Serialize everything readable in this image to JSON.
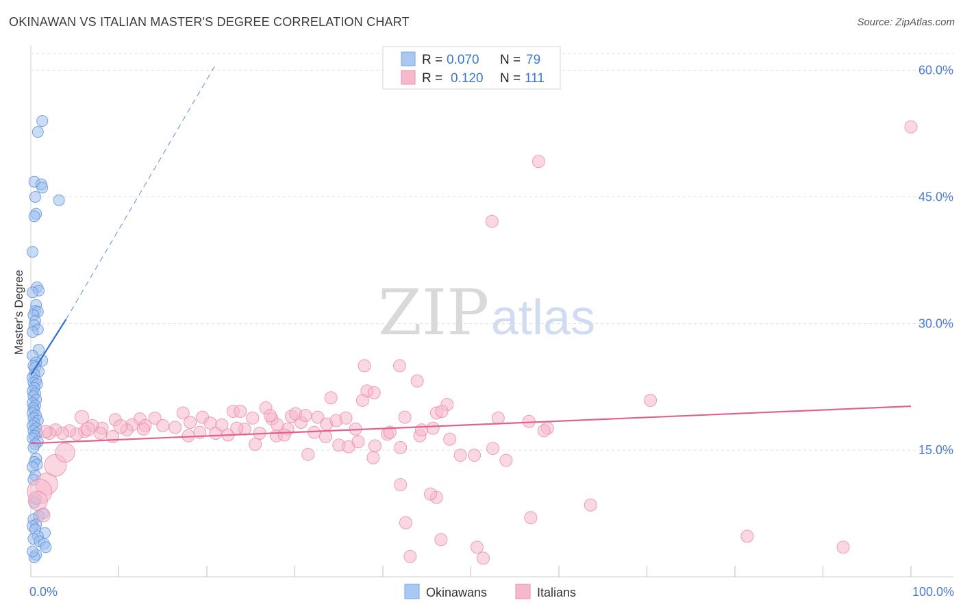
{
  "chart_data": {
    "type": "scatter",
    "title": "OKINAWAN VS ITALIAN MASTER'S DEGREE CORRELATION CHART",
    "source": "Source: ZipAtlas.com",
    "xlabel": "",
    "ylabel": "Master's Degree",
    "xlim": [
      0,
      100
    ],
    "ylim": [
      0,
      62
    ],
    "x_tick_labels": [
      {
        "value": 0,
        "label": "0.0%"
      },
      {
        "value": 100,
        "label": "100.0%"
      }
    ],
    "y_tick_labels": [
      {
        "value": 15,
        "label": "15.0%"
      },
      {
        "value": 30,
        "label": "30.0%"
      },
      {
        "value": 45,
        "label": "45.0%"
      },
      {
        "value": 60,
        "label": "60.0%"
      }
    ],
    "watermark": {
      "part1": "ZIP",
      "part2": "atlas"
    },
    "legend": {
      "rows": [
        {
          "r_label": "R =",
          "r_value": "0.070",
          "n_label": "N =",
          "n_value": "79",
          "color": "#a9c8f2"
        },
        {
          "r_label": "R =",
          "r_value": "0.120",
          "n_label": "N =",
          "n_value": "111",
          "color": "#f6b8cb"
        }
      ]
    },
    "series": [
      {
        "name": "Okinawans",
        "color": "#9ec0ee",
        "edge_color": "#5b8fd8",
        "trend_color": "#2f6fd1",
        "trend_solid": [
          [
            0.0,
            23.9
          ],
          [
            4.0,
            30.5
          ]
        ],
        "trend_dashed": [
          [
            4.0,
            30.5
          ],
          [
            20.9,
            60.5
          ]
        ],
        "points": [
          [
            1.3,
            54.0,
            8
          ],
          [
            0.8,
            52.7,
            8
          ],
          [
            0.4,
            46.8,
            8
          ],
          [
            1.2,
            46.5,
            8
          ],
          [
            1.3,
            46.1,
            8
          ],
          [
            3.2,
            44.6,
            8
          ],
          [
            0.5,
            45.0,
            8
          ],
          [
            0.6,
            43.0,
            8
          ],
          [
            0.4,
            42.7,
            8
          ],
          [
            0.2,
            38.5,
            8
          ],
          [
            0.7,
            34.3,
            8
          ],
          [
            0.9,
            33.9,
            8
          ],
          [
            0.2,
            33.7,
            8
          ],
          [
            0.6,
            32.2,
            8
          ],
          [
            0.5,
            31.5,
            8
          ],
          [
            0.8,
            31.4,
            8
          ],
          [
            0.3,
            31.0,
            8
          ],
          [
            0.5,
            30.3,
            8
          ],
          [
            0.4,
            29.8,
            8
          ],
          [
            0.8,
            29.3,
            8
          ],
          [
            0.2,
            29.0,
            8
          ],
          [
            0.9,
            26.9,
            8
          ],
          [
            0.2,
            26.2,
            8
          ],
          [
            1.3,
            25.6,
            8
          ],
          [
            0.6,
            25.4,
            8
          ],
          [
            0.3,
            25.0,
            8
          ],
          [
            0.5,
            24.8,
            8
          ],
          [
            0.9,
            24.3,
            8
          ],
          [
            0.4,
            24.0,
            8
          ],
          [
            0.2,
            23.6,
            8
          ],
          [
            0.6,
            23.2,
            8
          ],
          [
            0.3,
            23.0,
            8
          ],
          [
            0.7,
            22.8,
            8
          ],
          [
            0.4,
            22.4,
            8
          ],
          [
            0.2,
            22.0,
            8
          ],
          [
            0.5,
            21.7,
            8
          ],
          [
            0.3,
            21.4,
            8
          ],
          [
            0.6,
            21.0,
            8
          ],
          [
            0.2,
            20.6,
            8
          ],
          [
            0.5,
            20.3,
            8
          ],
          [
            0.3,
            20.0,
            8
          ],
          [
            0.4,
            19.7,
            8
          ],
          [
            0.2,
            19.4,
            8
          ],
          [
            0.6,
            19.1,
            8
          ],
          [
            0.3,
            18.8,
            8
          ],
          [
            0.8,
            18.5,
            8
          ],
          [
            0.4,
            18.2,
            8
          ],
          [
            0.2,
            17.9,
            8
          ],
          [
            0.6,
            17.6,
            8
          ],
          [
            0.3,
            17.3,
            8
          ],
          [
            0.7,
            17.0,
            8
          ],
          [
            0.4,
            16.7,
            8
          ],
          [
            0.2,
            16.4,
            8
          ],
          [
            0.8,
            16.0,
            8
          ],
          [
            0.5,
            15.7,
            8
          ],
          [
            0.3,
            15.3,
            8
          ],
          [
            0.6,
            14.0,
            8
          ],
          [
            0.4,
            13.6,
            8
          ],
          [
            0.7,
            13.3,
            8
          ],
          [
            0.2,
            13.0,
            8
          ],
          [
            0.5,
            12.0,
            8
          ],
          [
            0.3,
            11.5,
            8
          ],
          [
            0.6,
            9.2,
            8
          ],
          [
            0.4,
            8.8,
            8
          ],
          [
            1.4,
            7.5,
            8
          ],
          [
            0.9,
            7.2,
            8
          ],
          [
            0.3,
            6.8,
            8
          ],
          [
            0.6,
            6.2,
            8
          ],
          [
            0.2,
            6.0,
            8
          ],
          [
            0.5,
            5.6,
            8
          ],
          [
            1.6,
            5.2,
            8
          ],
          [
            0.8,
            4.8,
            8
          ],
          [
            0.3,
            4.5,
            8
          ],
          [
            1.0,
            4.2,
            8
          ],
          [
            1.5,
            3.9,
            8
          ],
          [
            1.7,
            3.5,
            8
          ],
          [
            0.6,
            2.6,
            8
          ],
          [
            0.4,
            2.3,
            8
          ],
          [
            0.2,
            3.0,
            8
          ]
        ]
      },
      {
        "name": "Italians",
        "color": "#f6b8cb",
        "edge_color": "#e987a8",
        "trend_color": "#e35f8e",
        "trend_solid": [
          [
            0.0,
            15.8
          ],
          [
            100.0,
            20.2
          ]
        ],
        "trend_dashed": [],
        "points": [
          [
            100.0,
            53.3,
            9
          ],
          [
            57.7,
            49.2,
            9
          ],
          [
            52.4,
            42.1,
            9
          ],
          [
            37.9,
            25.0,
            9
          ],
          [
            41.9,
            25.0,
            9
          ],
          [
            43.9,
            23.2,
            9
          ],
          [
            34.1,
            21.2,
            9
          ],
          [
            38.2,
            22.0,
            9
          ],
          [
            39.0,
            21.8,
            9
          ],
          [
            37.7,
            20.9,
            9
          ],
          [
            47.3,
            20.4,
            9
          ],
          [
            46.1,
            19.4,
            9
          ],
          [
            53.1,
            18.8,
            9
          ],
          [
            56.6,
            18.4,
            9
          ],
          [
            58.7,
            17.6,
            9
          ],
          [
            26.7,
            20.0,
            9
          ],
          [
            23.0,
            19.6,
            9
          ],
          [
            23.8,
            19.6,
            9
          ],
          [
            17.3,
            19.4,
            9
          ],
          [
            19.5,
            18.9,
            9
          ],
          [
            20.4,
            18.2,
            9
          ],
          [
            14.1,
            18.8,
            9
          ],
          [
            12.4,
            18.7,
            9
          ],
          [
            13.0,
            17.9,
            9
          ],
          [
            11.5,
            18.0,
            9
          ],
          [
            10.9,
            17.4,
            9
          ],
          [
            9.6,
            18.6,
            9
          ],
          [
            8.1,
            17.6,
            9
          ],
          [
            7.0,
            17.9,
            9
          ],
          [
            6.1,
            17.2,
            9
          ],
          [
            5.2,
            16.9,
            9
          ],
          [
            4.4,
            17.3,
            9
          ],
          [
            3.6,
            17.0,
            9
          ],
          [
            2.8,
            17.4,
            9
          ],
          [
            2.1,
            17.0,
            9
          ],
          [
            1.7,
            17.2,
            9
          ],
          [
            9.3,
            16.6,
            9
          ],
          [
            7.9,
            17.0,
            9
          ],
          [
            15.0,
            17.9,
            9
          ],
          [
            16.4,
            17.7,
            9
          ],
          [
            17.9,
            16.7,
            9
          ],
          [
            19.2,
            17.1,
            9
          ],
          [
            21.0,
            17.0,
            9
          ],
          [
            22.4,
            16.8,
            9
          ],
          [
            24.3,
            17.5,
            9
          ],
          [
            26.0,
            17.0,
            9
          ],
          [
            27.9,
            16.7,
            9
          ],
          [
            29.2,
            17.5,
            9
          ],
          [
            30.7,
            18.3,
            9
          ],
          [
            32.2,
            17.1,
            9
          ],
          [
            33.5,
            16.6,
            9
          ],
          [
            35.0,
            15.6,
            9
          ],
          [
            36.1,
            15.4,
            9
          ],
          [
            37.2,
            16.0,
            9
          ],
          [
            39.1,
            15.5,
            9
          ],
          [
            40.5,
            16.9,
            9
          ],
          [
            42.0,
            15.3,
            9
          ],
          [
            44.2,
            16.7,
            9
          ],
          [
            45.7,
            17.6,
            9
          ],
          [
            47.6,
            16.3,
            9
          ],
          [
            48.8,
            14.4,
            9
          ],
          [
            50.4,
            14.4,
            9
          ],
          [
            52.5,
            15.2,
            9
          ],
          [
            54.0,
            13.8,
            9
          ],
          [
            31.5,
            14.5,
            9
          ],
          [
            38.9,
            14.1,
            9
          ],
          [
            25.5,
            15.7,
            9
          ],
          [
            28.8,
            16.8,
            9
          ],
          [
            12.8,
            17.5,
            9
          ],
          [
            23.4,
            17.6,
            9
          ],
          [
            27.4,
            18.7,
            9
          ],
          [
            28.0,
            18.0,
            9
          ],
          [
            29.6,
            19.0,
            9
          ],
          [
            30.1,
            19.3,
            9
          ],
          [
            31.2,
            19.1,
            9
          ],
          [
            32.6,
            18.9,
            9
          ],
          [
            33.6,
            18.1,
            9
          ],
          [
            34.7,
            18.5,
            9
          ],
          [
            35.8,
            18.8,
            9
          ],
          [
            27.2,
            19.1,
            9
          ],
          [
            36.9,
            17.5,
            9
          ],
          [
            40.8,
            17.1,
            9
          ],
          [
            42.5,
            18.9,
            9
          ],
          [
            44.4,
            17.4,
            9
          ],
          [
            46.7,
            19.6,
            9
          ],
          [
            58.3,
            17.3,
            9
          ],
          [
            70.4,
            20.9,
            9
          ],
          [
            25.2,
            18.8,
            9
          ],
          [
            21.7,
            18.0,
            9
          ],
          [
            18.1,
            18.3,
            9
          ],
          [
            42.0,
            10.9,
            9
          ],
          [
            46.1,
            9.4,
            9
          ],
          [
            45.4,
            9.8,
            9
          ],
          [
            42.6,
            6.4,
            9
          ],
          [
            46.6,
            4.4,
            9
          ],
          [
            50.7,
            3.5,
            9
          ],
          [
            56.8,
            7.0,
            9
          ],
          [
            63.6,
            8.5,
            9
          ],
          [
            81.4,
            4.8,
            9
          ],
          [
            92.3,
            3.5,
            9
          ],
          [
            43.1,
            2.4,
            9
          ],
          [
            51.4,
            2.2,
            9
          ],
          [
            1.8,
            11.0,
            16
          ],
          [
            1.0,
            10.1,
            18
          ],
          [
            0.8,
            9.0,
            14
          ],
          [
            2.8,
            13.2,
            16
          ],
          [
            3.9,
            14.7,
            14
          ],
          [
            1.4,
            7.3,
            10
          ],
          [
            5.8,
            18.9,
            10
          ],
          [
            6.5,
            17.5,
            10
          ],
          [
            10.2,
            17.8,
            10
          ]
        ]
      }
    ]
  },
  "bottom_legend": [
    {
      "label": "Okinawans",
      "color": "#a9c8f2"
    },
    {
      "label": "Italians",
      "color": "#f6b8cb"
    }
  ]
}
